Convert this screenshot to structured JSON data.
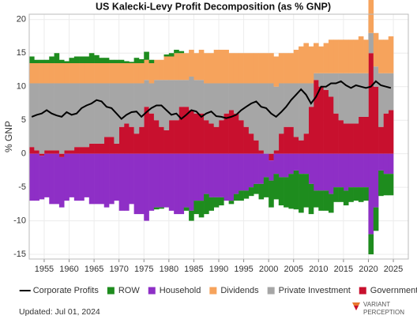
{
  "chart_data": {
    "type": "bar",
    "title": "US Kalecki-Levy Profit Decomposition (as % GNP)",
    "y_label": "% GNP",
    "xlim": [
      1952,
      2028
    ],
    "ylim": [
      -15.7,
      20.8
    ],
    "xticks": [
      1955,
      1960,
      1965,
      1970,
      1975,
      1980,
      1985,
      1990,
      1995,
      2000,
      2005,
      2010,
      2015,
      2020,
      2025
    ],
    "yticks": [
      -15,
      -10,
      -5,
      0,
      5,
      10,
      15,
      20
    ],
    "grid": true,
    "legend": "bottom",
    "x": [
      1952,
      1953,
      1954,
      1955,
      1956,
      1957,
      1958,
      1959,
      1960,
      1961,
      1962,
      1963,
      1964,
      1965,
      1966,
      1967,
      1968,
      1969,
      1970,
      1971,
      1972,
      1973,
      1974,
      1975,
      1976,
      1977,
      1978,
      1979,
      1980,
      1981,
      1982,
      1983,
      1984,
      1985,
      1986,
      1987,
      1988,
      1989,
      1990,
      1991,
      1992,
      1993,
      1994,
      1995,
      1996,
      1997,
      1998,
      1999,
      2000,
      2001,
      2002,
      2003,
      2004,
      2005,
      2006,
      2007,
      2008,
      2009,
      2010,
      2011,
      2012,
      2013,
      2014,
      2015,
      2016,
      2017,
      2018,
      2019,
      2020,
      2021,
      2022,
      2023,
      2024
    ],
    "series": [
      {
        "name": "Corporate Profits",
        "type": "line",
        "color": "#000000",
        "values": [
          5.5,
          5.8,
          6,
          6.5,
          6,
          5.7,
          5.5,
          6.2,
          5.8,
          6,
          6.8,
          7.2,
          7.5,
          8,
          7.8,
          7,
          6.8,
          6,
          5.2,
          5.8,
          6.2,
          6.3,
          5.5,
          6.2,
          6.8,
          7.2,
          7.2,
          6.5,
          5.8,
          6,
          5.2,
          5.8,
          6.5,
          6.3,
          5.5,
          6,
          6.3,
          5.6,
          5.5,
          5.3,
          5.5,
          5.8,
          6.5,
          7,
          7.5,
          7.8,
          7,
          6.8,
          6,
          5.5,
          6.2,
          7,
          8,
          8.8,
          9.6,
          8.8,
          7.5,
          8.5,
          10,
          10,
          10.5,
          10.5,
          10.8,
          10.2,
          9.8,
          10.2,
          10,
          9.8,
          10,
          10.8,
          10.2,
          10,
          9.8
        ]
      },
      {
        "name": "ROW",
        "color": "#1e8c1e",
        "values": [
          1,
          0.5,
          0.5,
          0.5,
          1,
          1.5,
          0.5,
          0.3,
          0.8,
          1,
          1,
          1,
          1.5,
          1.2,
          0.8,
          0.8,
          0.5,
          0.5,
          0.5,
          0.3,
          0.2,
          0.8,
          0.6,
          1.2,
          0.5,
          -0.3,
          -0.2,
          0.3,
          0.5,
          0.5,
          0.3,
          -0.5,
          -1.5,
          -2,
          -2.5,
          -3,
          -2,
          -1.5,
          -1.2,
          0,
          -0.5,
          -1,
          -1.5,
          -1.2,
          -1.3,
          -1.5,
          -2.3,
          -3,
          -4,
          -3.8,
          -4.2,
          -4.5,
          -5.2,
          -5.8,
          -5.8,
          -5,
          -4.5,
          -2.5,
          -3,
          -3,
          -2.8,
          -2.2,
          -2.2,
          -2.2,
          -2.2,
          -2,
          -2.2,
          -2,
          -3,
          -3.5,
          -3.8,
          -3.2,
          -3.2
        ]
      },
      {
        "name": "Household",
        "color": "#8e2fc6",
        "values": [
          -7,
          -7,
          -6.5,
          -6.5,
          -7.5,
          -7.5,
          -7.5,
          -7,
          -6.5,
          -7,
          -7,
          -6.5,
          -7.5,
          -7.5,
          -7.5,
          -8,
          -7.5,
          -7,
          -8.5,
          -8.5,
          -7.5,
          -9,
          -9,
          -10,
          -8.5,
          -8,
          -8,
          -8,
          -8.5,
          -9,
          -9,
          -8,
          -8.5,
          -7,
          -7,
          -6,
          -6.5,
          -6.5,
          -6.5,
          -7,
          -7,
          -6,
          -5.5,
          -5.5,
          -5,
          -4.5,
          -4.5,
          -3.5,
          -3,
          -3,
          -3.5,
          -3.5,
          -3,
          -2.5,
          -3,
          -3,
          -4.5,
          -5.5,
          -5.5,
          -5.5,
          -6,
          -5,
          -5,
          -5.5,
          -5,
          -5,
          -5,
          -5,
          -12,
          -8,
          -2.5,
          -3,
          -3
        ]
      },
      {
        "name": "Dividends",
        "color": "#f6a35c",
        "values": [
          3,
          3,
          3,
          3,
          3,
          3,
          3,
          3,
          3,
          3,
          3,
          3,
          3,
          3,
          3,
          3,
          3,
          3,
          3,
          3,
          3,
          3,
          3,
          3,
          3,
          3,
          3,
          3.5,
          3.5,
          4,
          4,
          4,
          4,
          4,
          4.5,
          4.5,
          4.5,
          5,
          5,
          5,
          4.5,
          4.5,
          4.5,
          4.5,
          4.5,
          4.5,
          4.5,
          4.5,
          4.5,
          4.5,
          4.5,
          4.5,
          4.5,
          5,
          5.5,
          6,
          5.5,
          4.5,
          4,
          4.5,
          5,
          5,
          5,
          5,
          5,
          5,
          5.5,
          5,
          5,
          5,
          5,
          5,
          5.5
        ]
      },
      {
        "name": "Private Investment",
        "color": "#a6a6a6",
        "values": [
          9.5,
          10,
          10.5,
          10,
          10,
          10,
          10.5,
          10,
          10,
          9.5,
          9.5,
          9.5,
          9,
          9,
          9,
          8,
          8,
          9,
          6.5,
          6,
          6.5,
          7.5,
          6.5,
          4,
          4.5,
          6,
          7,
          7.5,
          6,
          6,
          4,
          4,
          5,
          5,
          5,
          5.5,
          6,
          6.5,
          5.5,
          4.5,
          4,
          4.5,
          5.5,
          6.5,
          7.5,
          8.5,
          10,
          10.5,
          10.5,
          9.5,
          7.5,
          6.5,
          6.5,
          8,
          8.5,
          7.5,
          3.5,
          1,
          2,
          2.5,
          3.5,
          6,
          7,
          7.5,
          7.5,
          7.5,
          6.5,
          6.5,
          3,
          3,
          8,
          6,
          5.5
        ]
      },
      {
        "name": "Government",
        "color": "#c8102e",
        "values": [
          1,
          0.5,
          -0.3,
          0.5,
          0.5,
          0.5,
          -0.5,
          0.5,
          0.5,
          1,
          1,
          1,
          1.5,
          1.5,
          1.5,
          2.5,
          2.5,
          1.5,
          4,
          4.5,
          4,
          3,
          4,
          7,
          6,
          5,
          4,
          3.5,
          5,
          5,
          7,
          7,
          6.5,
          6,
          6,
          5,
          4.5,
          4,
          5,
          6,
          6.5,
          6,
          5,
          4,
          3,
          2,
          0.5,
          0,
          -1,
          0.5,
          3,
          4,
          4,
          2.5,
          2,
          3,
          7,
          11,
          10,
          9.5,
          8.5,
          6,
          5,
          4.5,
          4.5,
          4.5,
          5.5,
          5.5,
          15,
          10,
          4,
          6,
          6.5
        ]
      }
    ]
  },
  "footer": {
    "updated": "Updated: Jul 01, 2024",
    "logo_line1": "VARIANT",
    "logo_line2": "PERCEPTION"
  }
}
